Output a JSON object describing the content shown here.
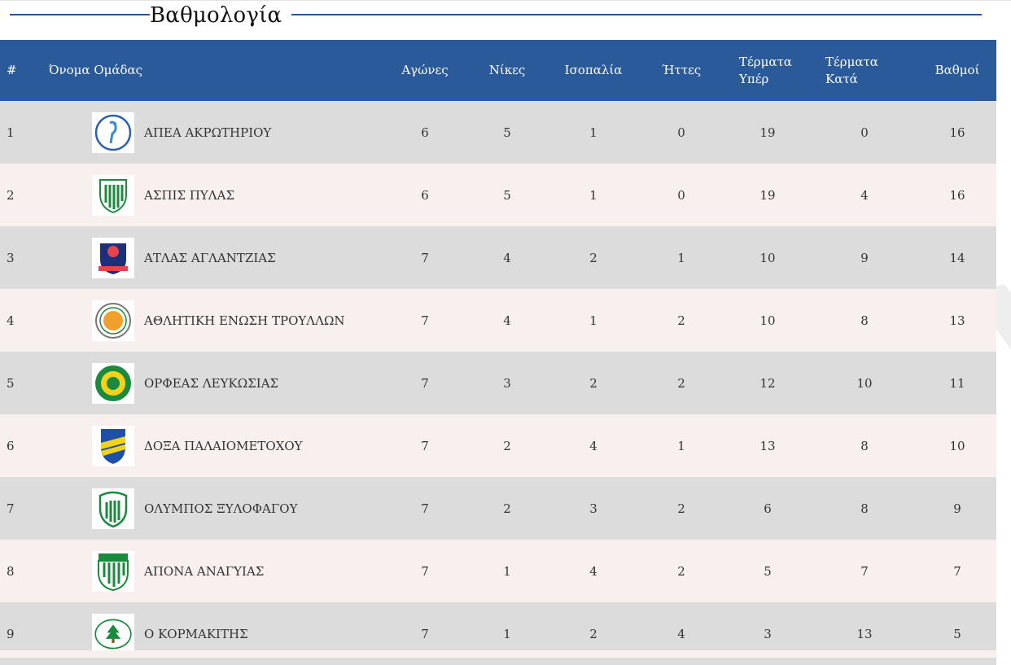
{
  "page": {
    "title": "Βαθμολογία"
  },
  "colors": {
    "header_bg": "#2a5a9a",
    "title_line": "#2a5593",
    "row_odd": "#dcdcdc",
    "row_even": "#f8efef"
  },
  "table": {
    "headers": {
      "position": "#",
      "team": "Όνομα Ομάδας",
      "played": "Αγώνες",
      "wins": "Νίκες",
      "draws": "Ισοπαλία",
      "losses": "Ήττες",
      "goals_for_1": "Τέρματα",
      "goals_for_2": "Υπέρ",
      "goals_against_1": "Τέρματα",
      "goals_against_2": "Κατά",
      "points": "Βαθμοί"
    },
    "rows": [
      {
        "pos": "1",
        "team": "ΑΠΕΑ ΑΚΡΩΤΗΡΙΟΥ",
        "logo_icon": "flamingo-crest-icon",
        "played": "6",
        "wins": "5",
        "draws": "1",
        "losses": "0",
        "gf": "19",
        "ga": "0",
        "pts": "16"
      },
      {
        "pos": "2",
        "team": "ΑΣΠΙΣ ΠΥΛΑΣ",
        "logo_icon": "green-shield-icon",
        "played": "6",
        "wins": "5",
        "draws": "1",
        "losses": "0",
        "gf": "19",
        "ga": "4",
        "pts": "16"
      },
      {
        "pos": "3",
        "team": "ΑΤΛΑΣ ΑΓΛΑΝΤΖΙΑΣ",
        "logo_icon": "atlas-crest-icon",
        "played": "7",
        "wins": "4",
        "draws": "2",
        "losses": "1",
        "gf": "10",
        "ga": "9",
        "pts": "14"
      },
      {
        "pos": "4",
        "team": "ΑΘΛΗΤΙΚΗ ΕΝΩΣΗ ΤΡΟΥΛΛΩΝ",
        "logo_icon": "round-crest-icon",
        "played": "7",
        "wins": "4",
        "draws": "1",
        "losses": "2",
        "gf": "10",
        "ga": "8",
        "pts": "13"
      },
      {
        "pos": "5",
        "team": "ΟΡΦΕΑΣ ΛΕΥΚΩΣΙΑΣ",
        "logo_icon": "yellow-green-badge-icon",
        "played": "7",
        "wins": "3",
        "draws": "2",
        "losses": "2",
        "gf": "12",
        "ga": "10",
        "pts": "11"
      },
      {
        "pos": "6",
        "team": "ΔΟΞΑ ΠΑΛΑΙΟΜΕΤΟΧΟΥ",
        "logo_icon": "blue-yellow-shield-icon",
        "played": "7",
        "wins": "2",
        "draws": "4",
        "losses": "1",
        "gf": "13",
        "ga": "8",
        "pts": "10"
      },
      {
        "pos": "7",
        "team": "ΟΛΥΜΠΟΣ ΞΥΛΟΦΑΓΟΥ",
        "logo_icon": "green-round-shield-icon",
        "played": "7",
        "wins": "2",
        "draws": "3",
        "losses": "2",
        "gf": "6",
        "ga": "8",
        "pts": "9"
      },
      {
        "pos": "8",
        "team": "ΑΠΟΝΑ ΑΝΑΓΥΙΑΣ",
        "logo_icon": "green-stripe-shield-icon",
        "played": "7",
        "wins": "1",
        "draws": "4",
        "losses": "2",
        "gf": "5",
        "ga": "7",
        "pts": "7"
      },
      {
        "pos": "9",
        "team": "Ο ΚΟΡΜΑΚΙΤΗΣ",
        "logo_icon": "cedar-badge-icon",
        "played": "7",
        "wins": "1",
        "draws": "2",
        "losses": "4",
        "gf": "3",
        "ga": "13",
        "pts": "5"
      }
    ]
  }
}
